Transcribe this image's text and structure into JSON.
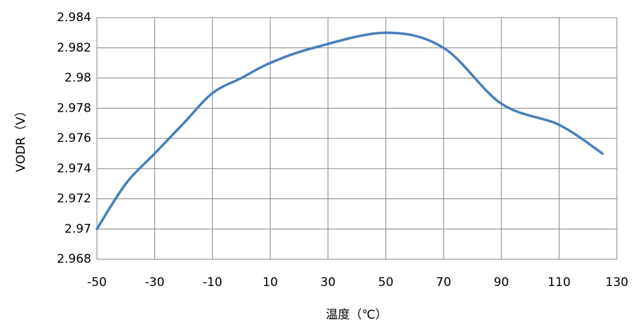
{
  "chart_data": {
    "type": "line",
    "x_label": "温度（℃）",
    "y_label": "VODR（V）",
    "series": [
      {
        "name": "VODR",
        "color": "#4a7ebb",
        "x": [
          -50,
          -40,
          -30,
          -20,
          -10,
          0,
          10,
          25,
          50,
          70,
          90,
          110,
          125
        ],
        "values": [
          2.97,
          2.973,
          2.975,
          2.977,
          2.979,
          2.98,
          2.981,
          2.982,
          2.983,
          2.982,
          2.9783,
          2.9769,
          2.975
        ]
      }
    ],
    "xlim": [
      -50,
      130
    ],
    "xticks": [
      -50,
      -30,
      -10,
      10,
      30,
      50,
      70,
      90,
      110,
      130
    ],
    "ylim": [
      2.968,
      2.984
    ],
    "yticks": [
      2.968,
      2.97,
      2.972,
      2.974,
      2.976,
      2.978,
      2.98,
      2.982,
      2.984
    ],
    "grid": true
  }
}
